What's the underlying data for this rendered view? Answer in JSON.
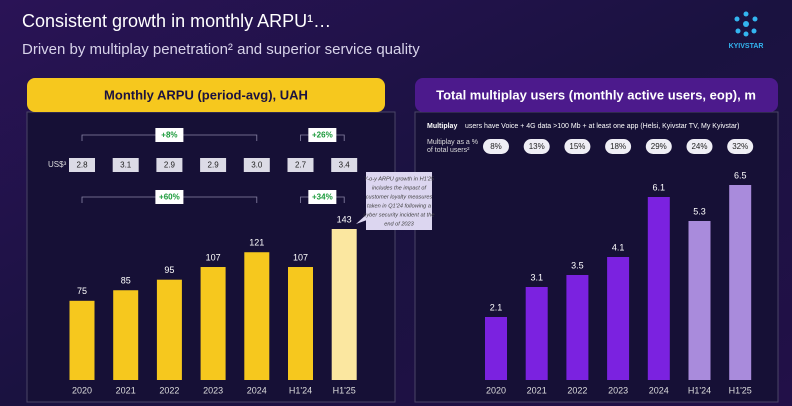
{
  "header": {
    "title": "Consistent growth in monthly ARPU¹…",
    "subtitle": "Driven by multiplay penetration² and superior service quality",
    "logo": "KYIVSTAR"
  },
  "chart_data": [
    {
      "type": "bar",
      "title": "Monthly ARPU (period-avg), UAH",
      "categories": [
        "2020",
        "2021",
        "2022",
        "2023",
        "2024",
        "H1'24",
        "H1'25"
      ],
      "values": [
        75,
        85,
        95,
        107,
        121,
        107,
        143
      ],
      "colors": [
        "#f6c81e",
        "#f6c81e",
        "#f6c81e",
        "#f6c81e",
        "#f6c81e",
        "#f6c81e",
        "#fbe7a0"
      ],
      "usd_row": {
        "label": "US$³",
        "values": [
          "2.8",
          "3.1",
          "2.9",
          "2.9",
          "3.0",
          "2.7",
          "3.4"
        ]
      },
      "annotations": [
        "+8%",
        "+26%",
        "+60%",
        "+34%"
      ],
      "note": [
        "Y-o-y ARPU growth in H1'25",
        "includes the impact of",
        "customer loyalty measures",
        "taken in Q1'24 following a",
        "cyber security incident at the",
        "end of 2023"
      ]
    },
    {
      "type": "bar",
      "title": "Total multiplay users (monthly active users, eop), m",
      "categories": [
        "2020",
        "2021",
        "2022",
        "2023",
        "2024",
        "H1'24",
        "H1'25"
      ],
      "values": [
        2.1,
        3.1,
        3.5,
        4.1,
        6.1,
        5.3,
        6.5
      ],
      "colors": [
        "#7b22e0",
        "#7b22e0",
        "#7b22e0",
        "#7b22e0",
        "#7b22e0",
        "#a98bdc",
        "#a98bdc"
      ],
      "definition": {
        "bold": "Multiplay",
        "text": "users have Voice + 4G data >100 Mb + at least one app (Helsi, Kyivstar TV, My Kyivstar)"
      },
      "share_row": {
        "label": [
          "Multiplay as a %",
          "of total users²"
        ],
        "values": [
          "8%",
          "13%",
          "15%",
          "18%",
          "29%",
          "24%",
          "32%"
        ]
      }
    }
  ]
}
